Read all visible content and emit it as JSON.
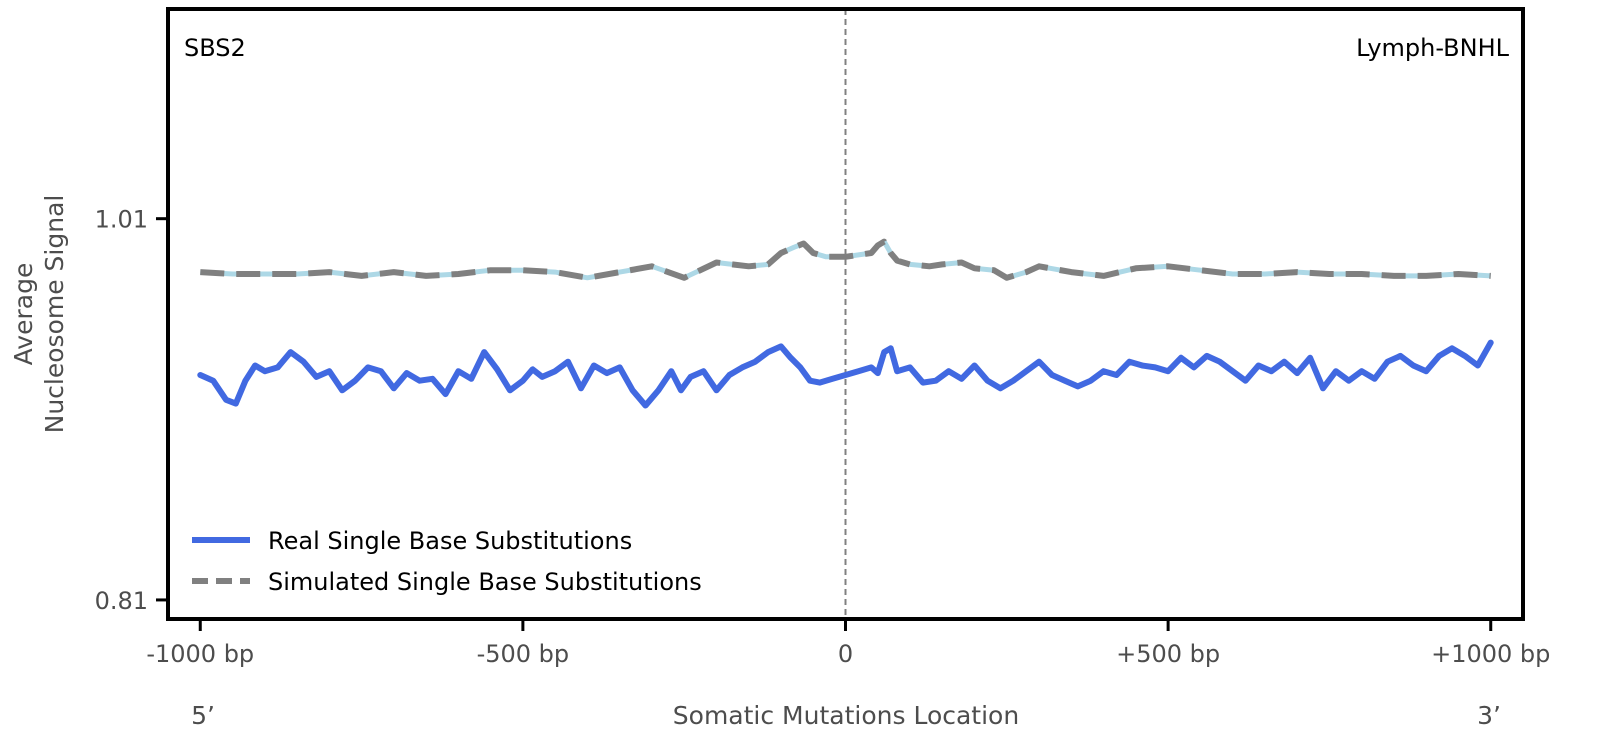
{
  "chart_data": {
    "type": "line",
    "top_left_label": "SBS2",
    "top_right_label": "Lymph-BNHL",
    "xlabel": "Somatic Mutations Location",
    "ylabel_lines": [
      "Average",
      "Nucleosome Signal"
    ],
    "end_labels": {
      "left": "5’",
      "right": "3’"
    },
    "xlim": [
      -1050,
      1050
    ],
    "ylim": [
      0.8,
      1.12
    ],
    "x_ticks": [
      {
        "value": -1000,
        "label": "-1000 bp"
      },
      {
        "value": -500,
        "label": "-500 bp"
      },
      {
        "value": 0,
        "label": "0"
      },
      {
        "value": 500,
        "label": "+500 bp"
      },
      {
        "value": 1000,
        "label": "+1000 bp"
      }
    ],
    "y_ticks": [
      {
        "value": 0.81,
        "label": "0.81"
      },
      {
        "value": 1.01,
        "label": "1.01"
      }
    ],
    "center_line_x": 0,
    "legend_position": "lower-left",
    "series": [
      {
        "name": "Real Single Base Substitutions",
        "color": "#4169e1",
        "style": "solid",
        "x": [
          -1000,
          -980,
          -960,
          -945,
          -930,
          -915,
          -900,
          -880,
          -860,
          -840,
          -820,
          -800,
          -780,
          -760,
          -740,
          -720,
          -700,
          -680,
          -660,
          -640,
          -620,
          -600,
          -580,
          -560,
          -540,
          -520,
          -500,
          -485,
          -470,
          -450,
          -430,
          -410,
          -390,
          -370,
          -350,
          -330,
          -310,
          -290,
          -270,
          -255,
          -240,
          -220,
          -200,
          -180,
          -160,
          -140,
          -120,
          -100,
          -85,
          -70,
          -55,
          -40,
          -20,
          0,
          20,
          40,
          50,
          60,
          70,
          80,
          100,
          120,
          140,
          160,
          180,
          200,
          220,
          240,
          260,
          280,
          300,
          320,
          340,
          360,
          380,
          400,
          420,
          440,
          460,
          480,
          500,
          520,
          540,
          560,
          580,
          600,
          620,
          640,
          660,
          680,
          700,
          720,
          740,
          760,
          780,
          800,
          820,
          840,
          860,
          880,
          900,
          920,
          940,
          960,
          980,
          1000
        ],
        "y": [
          0.928,
          0.925,
          0.915,
          0.913,
          0.925,
          0.933,
          0.93,
          0.932,
          0.94,
          0.935,
          0.927,
          0.93,
          0.92,
          0.925,
          0.932,
          0.93,
          0.921,
          0.929,
          0.925,
          0.926,
          0.918,
          0.93,
          0.926,
          0.94,
          0.931,
          0.92,
          0.925,
          0.931,
          0.927,
          0.93,
          0.935,
          0.921,
          0.933,
          0.929,
          0.932,
          0.92,
          0.912,
          0.92,
          0.93,
          0.92,
          0.927,
          0.93,
          0.92,
          0.928,
          0.932,
          0.935,
          0.94,
          0.943,
          0.937,
          0.932,
          0.925,
          0.924,
          0.926,
          0.928,
          0.93,
          0.932,
          0.929,
          0.94,
          0.942,
          0.93,
          0.932,
          0.924,
          0.925,
          0.93,
          0.926,
          0.933,
          0.925,
          0.921,
          0.925,
          0.93,
          0.935,
          0.928,
          0.925,
          0.922,
          0.925,
          0.93,
          0.928,
          0.935,
          0.933,
          0.932,
          0.93,
          0.937,
          0.932,
          0.938,
          0.935,
          0.93,
          0.925,
          0.933,
          0.93,
          0.935,
          0.929,
          0.937,
          0.921,
          0.93,
          0.925,
          0.93,
          0.926,
          0.935,
          0.938,
          0.933,
          0.93,
          0.938,
          0.942,
          0.938,
          0.933,
          0.945
        ]
      },
      {
        "name": "Simulated Single Base Substitutions",
        "color": "#808080",
        "highlight_color": "#add8e6",
        "style": "dashed",
        "x": [
          -1000,
          -950,
          -900,
          -850,
          -800,
          -750,
          -700,
          -650,
          -600,
          -550,
          -500,
          -450,
          -400,
          -350,
          -300,
          -250,
          -200,
          -150,
          -120,
          -100,
          -80,
          -65,
          -50,
          -30,
          0,
          20,
          40,
          50,
          60,
          70,
          80,
          100,
          130,
          150,
          180,
          200,
          230,
          250,
          280,
          300,
          350,
          400,
          450,
          500,
          550,
          600,
          650,
          700,
          750,
          800,
          850,
          900,
          950,
          1000
        ],
        "y": [
          0.982,
          0.981,
          0.981,
          0.981,
          0.982,
          0.98,
          0.982,
          0.98,
          0.981,
          0.983,
          0.983,
          0.982,
          0.979,
          0.982,
          0.985,
          0.979,
          0.987,
          0.985,
          0.986,
          0.992,
          0.995,
          0.997,
          0.992,
          0.99,
          0.99,
          0.991,
          0.992,
          0.996,
          0.998,
          0.992,
          0.988,
          0.986,
          0.985,
          0.986,
          0.987,
          0.984,
          0.983,
          0.979,
          0.982,
          0.985,
          0.982,
          0.98,
          0.984,
          0.985,
          0.983,
          0.981,
          0.981,
          0.982,
          0.981,
          0.981,
          0.98,
          0.98,
          0.981,
          0.98
        ]
      }
    ]
  }
}
